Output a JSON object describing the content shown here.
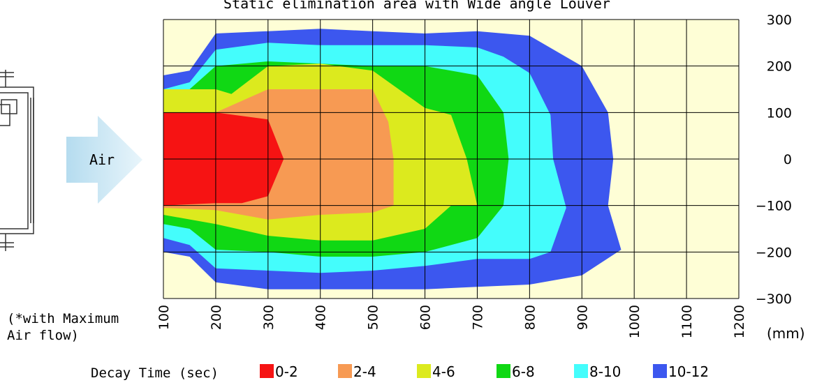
{
  "chart_data": {
    "type": "heatmap",
    "title": "Static elimination area with Wide angle Louver",
    "xlabel": "(mm)",
    "xlim": [
      100,
      1200
    ],
    "ylim": [
      -300,
      300
    ],
    "x_ticks": [
      "100",
      "200",
      "300",
      "400",
      "500",
      "600",
      "700",
      "800",
      "900",
      "1000",
      "1100",
      "1200"
    ],
    "y_ticks": [
      "300",
      "200",
      "100",
      "0",
      "−100",
      "−200",
      "−300"
    ],
    "note": "(*with Maximum Air flow)",
    "arrow_label": "Air",
    "legend_title": "Decay Time (sec)",
    "background_color": "#fefed6",
    "levels": [
      {
        "label": "10-12",
        "color": "#3c57ef",
        "x": [
          100,
          100,
          150,
          200,
          300,
          400,
          500,
          600,
          700,
          800,
          900,
          950,
          960,
          950,
          975,
          900,
          800,
          700,
          600,
          500,
          400,
          300,
          200,
          150,
          100
        ],
        "y": [
          -200,
          180,
          190,
          270,
          275,
          280,
          275,
          270,
          275,
          265,
          200,
          100,
          0,
          -100,
          -195,
          -250,
          -270,
          -275,
          -280,
          -280,
          -280,
          -280,
          -265,
          -210,
          -200
        ]
      },
      {
        "label": "8-10",
        "color": "#44fdfc",
        "x": [
          100,
          100,
          150,
          200,
          300,
          400,
          500,
          600,
          700,
          750,
          800,
          840,
          845,
          870,
          840,
          800,
          700,
          600,
          500,
          400,
          300,
          200,
          150,
          100
        ],
        "y": [
          -170,
          150,
          165,
          235,
          250,
          245,
          245,
          245,
          240,
          220,
          185,
          95,
          0,
          -105,
          -200,
          -215,
          -215,
          -230,
          -240,
          -245,
          -240,
          -235,
          -185,
          -170
        ]
      },
      {
        "label": "6-8",
        "color": "#10d814",
        "x": [
          100,
          100,
          150,
          200,
          300,
          400,
          500,
          600,
          700,
          750,
          760,
          750,
          700,
          600,
          500,
          400,
          300,
          200,
          150,
          100
        ],
        "y": [
          -140,
          150,
          150,
          200,
          210,
          205,
          200,
          200,
          180,
          100,
          0,
          -100,
          -170,
          -200,
          -210,
          -210,
          -200,
          -195,
          -150,
          -140
        ]
      },
      {
        "label": "4-6",
        "color": "#dcea1e",
        "x": [
          100,
          100,
          200,
          230,
          300,
          400,
          500,
          600,
          650,
          680,
          700,
          650,
          600,
          500,
          400,
          300,
          200,
          100
        ],
        "y": [
          -120,
          150,
          150,
          140,
          200,
          205,
          190,
          110,
          95,
          0,
          -100,
          -100,
          -150,
          -175,
          -175,
          -165,
          -140,
          -120
        ]
      },
      {
        "label": "2-4",
        "color": "#f79a53",
        "x": [
          100,
          100,
          200,
          300,
          400,
          500,
          530,
          540,
          540,
          500,
          400,
          300,
          200,
          100
        ],
        "y": [
          -105,
          100,
          100,
          150,
          150,
          150,
          80,
          0,
          -100,
          -115,
          -120,
          -130,
          -110,
          -105
        ]
      },
      {
        "label": "0-2",
        "color": "#f61313",
        "x": [
          100,
          100,
          200,
          300,
          330,
          300,
          250,
          200,
          100
        ],
        "y": [
          -100,
          100,
          100,
          85,
          0,
          -80,
          -95,
          -95,
          -100
        ]
      }
    ]
  }
}
